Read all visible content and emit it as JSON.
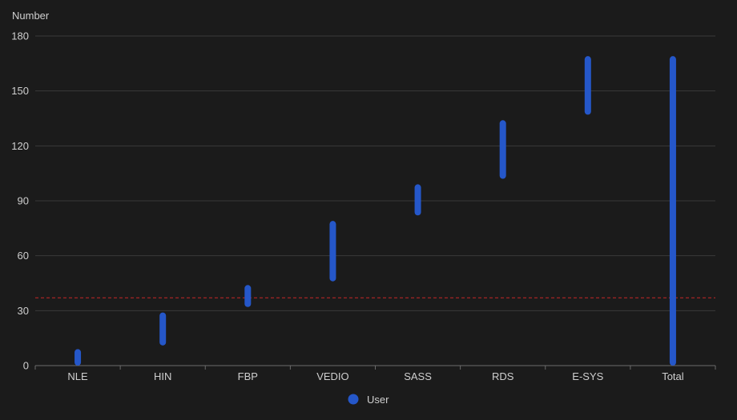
{
  "colors": {
    "background": "#1b1b1b",
    "grid": "#3a3a3a",
    "axis": "#6b6b6b",
    "text": "#cfcfcf",
    "series": "#2557c9",
    "reference_line": "#c62828"
  },
  "chart_data": {
    "type": "bar",
    "subtype": "floating-range",
    "ylabel": "Number",
    "ylim": [
      0,
      180
    ],
    "yticks": [
      0,
      30,
      60,
      90,
      120,
      150,
      180
    ],
    "grid": true,
    "legend_position": "bottom-center",
    "categories": [
      "NLE",
      "HIN",
      "FBP",
      "VEDIO",
      "SASS",
      "RDS",
      "E-SYS",
      "Total"
    ],
    "series": [
      {
        "name": "User",
        "ranges": [
          [
            0,
            9
          ],
          [
            11,
            29
          ],
          [
            32,
            44
          ],
          [
            46,
            79
          ],
          [
            82,
            99
          ],
          [
            102,
            134
          ],
          [
            137,
            169
          ],
          [
            0,
            169
          ]
        ]
      }
    ],
    "reference_line": {
      "y": 37,
      "style": "dashed"
    }
  }
}
